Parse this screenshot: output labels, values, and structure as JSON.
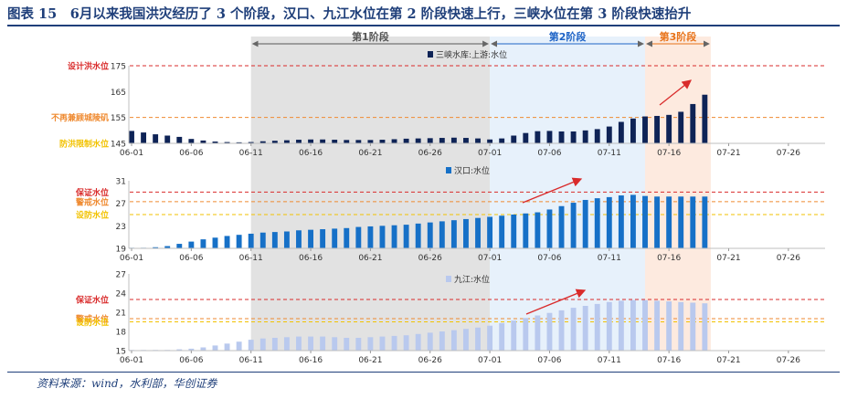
{
  "title": "图表 15　6月以来我国洪灾经历了 3 个阶段，汉口、九江水位在第 2 阶段快速上行，三峡水位在第 3 阶段快速抬升",
  "source": "资料来源：wind，水利部，华创证券",
  "colors": {
    "title": "#1f3f7a",
    "sanxia": "#0e2356",
    "hankou": "#1670c7",
    "jiujiang": "#b9c9ee",
    "stage1": "#e2e2e2",
    "stage2": "#e7f1fb",
    "stage3": "#fdeadf",
    "stage1_label": "#555555",
    "stage2_label": "#1e63c6",
    "stage3_label": "#e8731a",
    "red": "#d92b2b",
    "orange": "#ef8a30",
    "yellow": "#f2c200"
  },
  "stages": [
    {
      "label": "第1阶段",
      "start": "06-11",
      "end": "07-01"
    },
    {
      "label": "第2阶段",
      "start": "07-01",
      "end": "07-14"
    },
    {
      "label": "第3阶段",
      "start": "07-14",
      "end": "07-19"
    }
  ],
  "x_ticks": [
    "06-01",
    "06-06",
    "06-11",
    "06-16",
    "06-21",
    "06-26",
    "07-01",
    "07-06",
    "07-11",
    "07-16",
    "07-21",
    "07-26"
  ],
  "chart_data": [
    {
      "type": "bar",
      "series": [
        {
          "name": "三峡水库:上游:水位",
          "color_key": "sanxia"
        }
      ],
      "x": [
        "06-01",
        "06-02",
        "06-03",
        "06-04",
        "06-05",
        "06-06",
        "06-07",
        "06-08",
        "06-09",
        "06-10",
        "06-11",
        "06-12",
        "06-13",
        "06-14",
        "06-15",
        "06-16",
        "06-17",
        "06-18",
        "06-19",
        "06-20",
        "06-21",
        "06-22",
        "06-23",
        "06-24",
        "06-25",
        "06-26",
        "06-27",
        "06-28",
        "06-29",
        "06-30",
        "07-01",
        "07-02",
        "07-03",
        "07-04",
        "07-05",
        "07-06",
        "07-07",
        "07-08",
        "07-09",
        "07-10",
        "07-11",
        "07-12",
        "07-13",
        "07-14",
        "07-15",
        "07-16",
        "07-17",
        "07-18",
        "07-19"
      ],
      "values": [
        149.8,
        149.2,
        148.5,
        148,
        147.5,
        146.7,
        146.1,
        145.7,
        145.5,
        145.4,
        145.5,
        145.8,
        146,
        146.2,
        146.4,
        146.5,
        146.5,
        146.4,
        146.3,
        146.3,
        146.3,
        146.4,
        146.6,
        146.8,
        146.9,
        147,
        147.1,
        147.2,
        147.1,
        146.9,
        146.5,
        146.9,
        148,
        149,
        149.7,
        149.8,
        149.6,
        149.6,
        150,
        150.5,
        151.5,
        153.3,
        154.6,
        155.4,
        155.6,
        156,
        157.2,
        160.2,
        163.8
      ],
      "ylim": [
        145,
        175
      ],
      "y_ticks": [
        145,
        155,
        165,
        175
      ],
      "reference_lines": [
        {
          "value": 175,
          "label": "设计洪水位",
          "color_key": "red"
        },
        {
          "value": 155,
          "label": "不再兼顾城陵矶",
          "color_key": "orange"
        },
        {
          "value": 145,
          "label": "防洪限制水位",
          "color_key": "yellow"
        }
      ]
    },
    {
      "type": "bar",
      "series": [
        {
          "name": "汉口:水位",
          "color_key": "hankou"
        }
      ],
      "x": [
        "06-01",
        "06-02",
        "06-03",
        "06-04",
        "06-05",
        "06-06",
        "06-07",
        "06-08",
        "06-09",
        "06-10",
        "06-11",
        "06-12",
        "06-13",
        "06-14",
        "06-15",
        "06-16",
        "06-17",
        "06-18",
        "06-19",
        "06-20",
        "06-21",
        "06-22",
        "06-23",
        "06-24",
        "06-25",
        "06-26",
        "06-27",
        "06-28",
        "06-29",
        "06-30",
        "07-01",
        "07-02",
        "07-03",
        "07-04",
        "07-05",
        "07-06",
        "07-07",
        "07-08",
        "07-09",
        "07-10",
        "07-11",
        "07-12",
        "07-13",
        "07-14",
        "07-15",
        "07-16",
        "07-17",
        "07-18",
        "07-19"
      ],
      "values": [
        19.1,
        19.1,
        19.2,
        19.4,
        19.8,
        20.2,
        20.6,
        20.9,
        21.2,
        21.4,
        21.6,
        21.8,
        21.9,
        22,
        22.2,
        22.3,
        22.4,
        22.5,
        22.6,
        22.8,
        22.9,
        23,
        23.1,
        23.2,
        23.4,
        23.6,
        23.8,
        24,
        24.2,
        24.4,
        24.6,
        24.8,
        25,
        25.2,
        25.4,
        25.9,
        26.5,
        27.1,
        27.6,
        27.9,
        28.1,
        28.4,
        28.5,
        28.3,
        28.2,
        28.2,
        28.2,
        28.2,
        28.2
      ],
      "ylim": [
        19,
        31
      ],
      "y_ticks": [
        19,
        23,
        27,
        31
      ],
      "reference_lines": [
        {
          "value": 29.0,
          "label": "保证水位",
          "color_key": "red"
        },
        {
          "value": 27.3,
          "label": "警戒水位",
          "color_key": "orange"
        },
        {
          "value": 25.0,
          "label": "设防水位",
          "color_key": "yellow"
        }
      ]
    },
    {
      "type": "bar",
      "series": [
        {
          "name": "九江:水位",
          "color_key": "jiujiang"
        }
      ],
      "x": [
        "06-01",
        "06-02",
        "06-03",
        "06-04",
        "06-05",
        "06-06",
        "06-07",
        "06-08",
        "06-09",
        "06-10",
        "06-11",
        "06-12",
        "06-13",
        "06-14",
        "06-15",
        "06-16",
        "06-17",
        "06-18",
        "06-19",
        "06-20",
        "06-21",
        "06-22",
        "06-23",
        "06-24",
        "06-25",
        "06-26",
        "06-27",
        "06-28",
        "06-29",
        "06-30",
        "07-01",
        "07-02",
        "07-03",
        "07-04",
        "07-05",
        "07-06",
        "07-07",
        "07-08",
        "07-09",
        "07-10",
        "07-11",
        "07-12",
        "07-13",
        "07-14",
        "07-15",
        "07-16",
        "07-17",
        "07-18",
        "07-19"
      ],
      "values": [
        15.1,
        15.1,
        15.1,
        15.1,
        15.2,
        15.3,
        15.5,
        15.8,
        16.1,
        16.4,
        16.7,
        16.9,
        17,
        17.1,
        17.2,
        17.2,
        17.2,
        17.1,
        17,
        17,
        17.1,
        17.2,
        17.3,
        17.4,
        17.6,
        17.8,
        18,
        18.2,
        18.4,
        18.6,
        18.9,
        19.3,
        19.7,
        20.1,
        20.5,
        20.9,
        21.3,
        21.7,
        22,
        22.3,
        22.6,
        22.8,
        22.9,
        22.9,
        22.8,
        22.7,
        22.6,
        22.5,
        22.4
      ],
      "ylim": [
        15,
        27
      ],
      "y_ticks": [
        15,
        18,
        21,
        24,
        27
      ],
      "reference_lines": [
        {
          "value": 23.0,
          "label": "保证水位",
          "color_key": "red"
        },
        {
          "value": 20.0,
          "label": "警戒水位",
          "color_key": "orange"
        },
        {
          "value": 19.5,
          "label": "设防水位",
          "color_key": "yellow"
        }
      ]
    }
  ]
}
